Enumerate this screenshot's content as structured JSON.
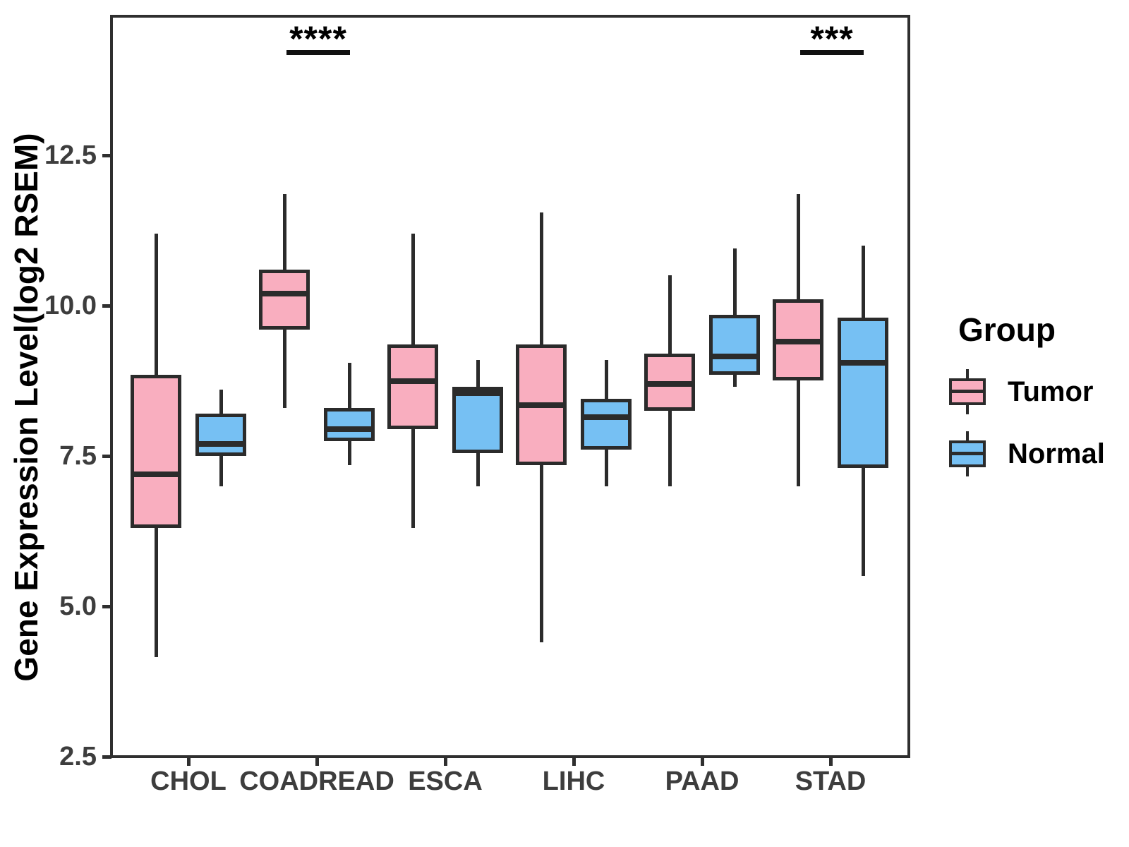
{
  "chart_data": {
    "type": "boxplot",
    "title": "",
    "xlabel": "",
    "ylabel": "Gene Expression Level(log2 RSEM)",
    "y_ticks": [
      "2.5",
      "5.0",
      "7.5",
      "10.0",
      "12.5"
    ],
    "y_range_shown": [
      2.5,
      14.8
    ],
    "grid": false,
    "categories": [
      "CHOL",
      "COADREAD",
      "ESCA",
      "LIHC",
      "PAAD",
      "STAD"
    ],
    "series": [
      {
        "name": "Tumor",
        "color": "#f9aebf"
      },
      {
        "name": "Normal",
        "color": "#76c0f3"
      }
    ],
    "boxes": [
      {
        "category": "CHOL",
        "group": "Tumor",
        "whisker_low": 4.15,
        "q1": 6.3,
        "median": 7.2,
        "q3": 8.85,
        "whisker_high": 11.2
      },
      {
        "category": "CHOL",
        "group": "Normal",
        "whisker_low": 7.0,
        "q1": 7.5,
        "median": 7.7,
        "q3": 8.2,
        "whisker_high": 8.6
      },
      {
        "category": "COADREAD",
        "group": "Tumor",
        "whisker_low": 8.3,
        "q1": 9.6,
        "median": 10.2,
        "q3": 10.6,
        "whisker_high": 11.85
      },
      {
        "category": "COADREAD",
        "group": "Normal",
        "whisker_low": 7.35,
        "q1": 7.75,
        "median": 7.95,
        "q3": 8.3,
        "whisker_high": 9.05
      },
      {
        "category": "ESCA",
        "group": "Tumor",
        "whisker_low": 6.3,
        "q1": 7.95,
        "median": 8.75,
        "q3": 9.35,
        "whisker_high": 11.2
      },
      {
        "category": "ESCA",
        "group": "Normal",
        "whisker_low": 7.0,
        "q1": 7.55,
        "median": 8.55,
        "q3": 8.65,
        "whisker_high": 9.1
      },
      {
        "category": "LIHC",
        "group": "Tumor",
        "whisker_low": 4.4,
        "q1": 7.35,
        "median": 8.35,
        "q3": 9.35,
        "whisker_high": 11.55
      },
      {
        "category": "LIHC",
        "group": "Normal",
        "whisker_low": 7.0,
        "q1": 7.6,
        "median": 8.15,
        "q3": 8.45,
        "whisker_high": 9.1
      },
      {
        "category": "PAAD",
        "group": "Tumor",
        "whisker_low": 7.0,
        "q1": 8.25,
        "median": 8.7,
        "q3": 9.2,
        "whisker_high": 10.5
      },
      {
        "category": "PAAD",
        "group": "Normal",
        "whisker_low": 8.65,
        "q1": 8.85,
        "median": 9.15,
        "q3": 9.85,
        "whisker_high": 10.95
      },
      {
        "category": "STAD",
        "group": "Tumor",
        "whisker_low": 7.0,
        "q1": 8.75,
        "median": 9.4,
        "q3": 10.1,
        "whisker_high": 11.85
      },
      {
        "category": "STAD",
        "group": "Normal",
        "whisker_low": 5.5,
        "q1": 7.3,
        "median": 9.05,
        "q3": 9.8,
        "whisker_high": 11.0
      }
    ],
    "annotations": [
      {
        "category": "COADREAD",
        "label": "****"
      },
      {
        "category": "STAD",
        "label": "***"
      }
    ],
    "legend": {
      "title": "Group",
      "position": "right",
      "entries": [
        "Tumor",
        "Normal"
      ]
    }
  }
}
